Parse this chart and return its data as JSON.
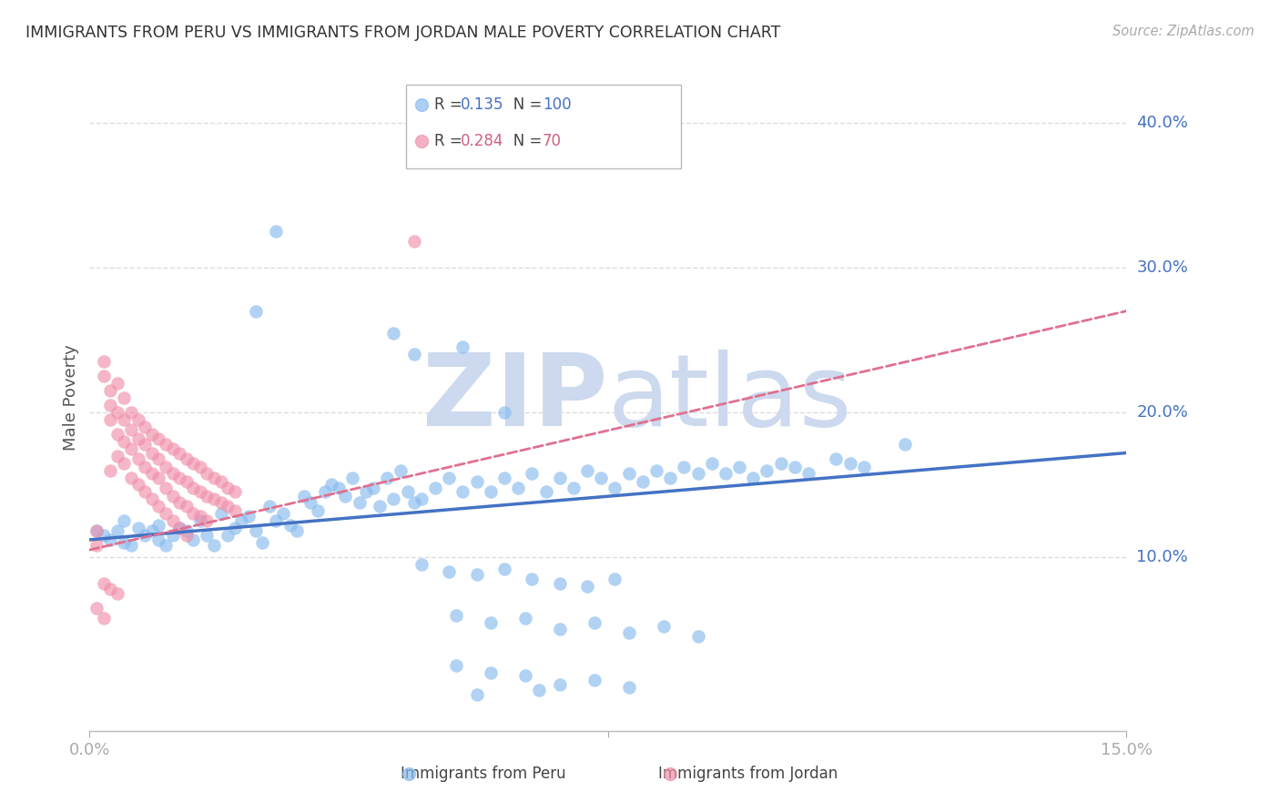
{
  "title": "IMMIGRANTS FROM PERU VS IMMIGRANTS FROM JORDAN MALE POVERTY CORRELATION CHART",
  "source": "Source: ZipAtlas.com",
  "ylabel_label": "Male Poverty",
  "xlim": [
    0.0,
    0.15
  ],
  "ylim": [
    -0.02,
    0.44
  ],
  "ylabel_right_positions": [
    0.1,
    0.2,
    0.3,
    0.4
  ],
  "ylabel_right_labels": [
    "10.0%",
    "20.0%",
    "30.0%",
    "40.0%"
  ],
  "legend_peru_R": "0.135",
  "legend_peru_N": "100",
  "legend_jordan_R": "0.284",
  "legend_jordan_N": "70",
  "color_peru": "#88bbee",
  "color_jordan": "#f090aa",
  "color_line_peru": "#4472c4",
  "color_line_jordan": "#e07090",
  "color_text_blue": "#4472c4",
  "color_text_pink": "#d06080",
  "watermark_color": "#ccd9ee",
  "background_color": "#ffffff",
  "grid_color": "#dddddd",
  "peru_line_x": [
    0.0,
    0.15
  ],
  "peru_line_y": [
    0.112,
    0.172
  ],
  "jordan_line_x": [
    0.0,
    0.15
  ],
  "jordan_line_y": [
    0.105,
    0.27
  ],
  "peru_scatter": [
    [
      0.001,
      0.118
    ],
    [
      0.002,
      0.115
    ],
    [
      0.003,
      0.112
    ],
    [
      0.004,
      0.118
    ],
    [
      0.005,
      0.11
    ],
    [
      0.005,
      0.125
    ],
    [
      0.006,
      0.108
    ],
    [
      0.007,
      0.12
    ],
    [
      0.008,
      0.115
    ],
    [
      0.009,
      0.118
    ],
    [
      0.01,
      0.112
    ],
    [
      0.01,
      0.122
    ],
    [
      0.011,
      0.108
    ],
    [
      0.012,
      0.115
    ],
    [
      0.013,
      0.12
    ],
    [
      0.014,
      0.118
    ],
    [
      0.015,
      0.112
    ],
    [
      0.016,
      0.125
    ],
    [
      0.017,
      0.115
    ],
    [
      0.018,
      0.108
    ],
    [
      0.019,
      0.13
    ],
    [
      0.02,
      0.115
    ],
    [
      0.021,
      0.12
    ],
    [
      0.022,
      0.125
    ],
    [
      0.023,
      0.128
    ],
    [
      0.024,
      0.118
    ],
    [
      0.025,
      0.11
    ],
    [
      0.026,
      0.135
    ],
    [
      0.027,
      0.125
    ],
    [
      0.028,
      0.13
    ],
    [
      0.029,
      0.122
    ],
    [
      0.03,
      0.118
    ],
    [
      0.031,
      0.142
    ],
    [
      0.032,
      0.138
    ],
    [
      0.033,
      0.132
    ],
    [
      0.034,
      0.145
    ],
    [
      0.035,
      0.15
    ],
    [
      0.036,
      0.148
    ],
    [
      0.037,
      0.142
    ],
    [
      0.038,
      0.155
    ],
    [
      0.039,
      0.138
    ],
    [
      0.04,
      0.145
    ],
    [
      0.041,
      0.148
    ],
    [
      0.042,
      0.135
    ],
    [
      0.043,
      0.155
    ],
    [
      0.044,
      0.14
    ],
    [
      0.045,
      0.16
    ],
    [
      0.046,
      0.145
    ],
    [
      0.047,
      0.138
    ],
    [
      0.048,
      0.14
    ],
    [
      0.05,
      0.148
    ],
    [
      0.052,
      0.155
    ],
    [
      0.054,
      0.145
    ],
    [
      0.056,
      0.152
    ],
    [
      0.058,
      0.145
    ],
    [
      0.06,
      0.155
    ],
    [
      0.062,
      0.148
    ],
    [
      0.064,
      0.158
    ],
    [
      0.066,
      0.145
    ],
    [
      0.068,
      0.155
    ],
    [
      0.07,
      0.148
    ],
    [
      0.072,
      0.16
    ],
    [
      0.074,
      0.155
    ],
    [
      0.076,
      0.148
    ],
    [
      0.078,
      0.158
    ],
    [
      0.08,
      0.152
    ],
    [
      0.082,
      0.16
    ],
    [
      0.084,
      0.155
    ],
    [
      0.086,
      0.162
    ],
    [
      0.088,
      0.158
    ],
    [
      0.09,
      0.165
    ],
    [
      0.092,
      0.158
    ],
    [
      0.094,
      0.162
    ],
    [
      0.096,
      0.155
    ],
    [
      0.098,
      0.16
    ],
    [
      0.1,
      0.165
    ],
    [
      0.102,
      0.162
    ],
    [
      0.104,
      0.158
    ],
    [
      0.108,
      0.168
    ],
    [
      0.11,
      0.165
    ],
    [
      0.112,
      0.162
    ],
    [
      0.118,
      0.178
    ],
    [
      0.024,
      0.27
    ],
    [
      0.027,
      0.325
    ],
    [
      0.044,
      0.255
    ],
    [
      0.047,
      0.24
    ],
    [
      0.054,
      0.245
    ],
    [
      0.06,
      0.2
    ],
    [
      0.048,
      0.095
    ],
    [
      0.052,
      0.09
    ],
    [
      0.056,
      0.088
    ],
    [
      0.06,
      0.092
    ],
    [
      0.064,
      0.085
    ],
    [
      0.068,
      0.082
    ],
    [
      0.072,
      0.08
    ],
    [
      0.076,
      0.085
    ],
    [
      0.053,
      0.06
    ],
    [
      0.058,
      0.055
    ],
    [
      0.063,
      0.058
    ],
    [
      0.068,
      0.05
    ],
    [
      0.073,
      0.055
    ],
    [
      0.078,
      0.048
    ],
    [
      0.083,
      0.052
    ],
    [
      0.088,
      0.045
    ],
    [
      0.053,
      0.025
    ],
    [
      0.058,
      0.02
    ],
    [
      0.063,
      0.018
    ],
    [
      0.068,
      0.012
    ],
    [
      0.073,
      0.015
    ],
    [
      0.078,
      0.01
    ],
    [
      0.056,
      0.005
    ],
    [
      0.065,
      0.008
    ]
  ],
  "jordan_scatter": [
    [
      0.001,
      0.118
    ],
    [
      0.001,
      0.108
    ],
    [
      0.002,
      0.235
    ],
    [
      0.002,
      0.225
    ],
    [
      0.003,
      0.215
    ],
    [
      0.003,
      0.205
    ],
    [
      0.003,
      0.195
    ],
    [
      0.003,
      0.16
    ],
    [
      0.004,
      0.22
    ],
    [
      0.004,
      0.2
    ],
    [
      0.004,
      0.185
    ],
    [
      0.004,
      0.17
    ],
    [
      0.005,
      0.21
    ],
    [
      0.005,
      0.195
    ],
    [
      0.005,
      0.18
    ],
    [
      0.005,
      0.165
    ],
    [
      0.006,
      0.2
    ],
    [
      0.006,
      0.188
    ],
    [
      0.006,
      0.175
    ],
    [
      0.006,
      0.155
    ],
    [
      0.007,
      0.195
    ],
    [
      0.007,
      0.182
    ],
    [
      0.007,
      0.168
    ],
    [
      0.007,
      0.15
    ],
    [
      0.008,
      0.19
    ],
    [
      0.008,
      0.178
    ],
    [
      0.008,
      0.162
    ],
    [
      0.008,
      0.145
    ],
    [
      0.009,
      0.185
    ],
    [
      0.009,
      0.172
    ],
    [
      0.009,
      0.158
    ],
    [
      0.009,
      0.14
    ],
    [
      0.01,
      0.182
    ],
    [
      0.01,
      0.168
    ],
    [
      0.01,
      0.155
    ],
    [
      0.01,
      0.135
    ],
    [
      0.011,
      0.178
    ],
    [
      0.011,
      0.162
    ],
    [
      0.011,
      0.148
    ],
    [
      0.011,
      0.13
    ],
    [
      0.012,
      0.175
    ],
    [
      0.012,
      0.158
    ],
    [
      0.012,
      0.142
    ],
    [
      0.012,
      0.125
    ],
    [
      0.013,
      0.172
    ],
    [
      0.013,
      0.155
    ],
    [
      0.013,
      0.138
    ],
    [
      0.013,
      0.12
    ],
    [
      0.014,
      0.168
    ],
    [
      0.014,
      0.152
    ],
    [
      0.014,
      0.135
    ],
    [
      0.014,
      0.115
    ],
    [
      0.015,
      0.165
    ],
    [
      0.015,
      0.148
    ],
    [
      0.015,
      0.13
    ],
    [
      0.016,
      0.162
    ],
    [
      0.016,
      0.145
    ],
    [
      0.016,
      0.128
    ],
    [
      0.017,
      0.158
    ],
    [
      0.017,
      0.142
    ],
    [
      0.017,
      0.125
    ],
    [
      0.018,
      0.155
    ],
    [
      0.018,
      0.14
    ],
    [
      0.019,
      0.152
    ],
    [
      0.019,
      0.138
    ],
    [
      0.02,
      0.148
    ],
    [
      0.02,
      0.135
    ],
    [
      0.021,
      0.145
    ],
    [
      0.021,
      0.132
    ],
    [
      0.002,
      0.082
    ],
    [
      0.003,
      0.078
    ],
    [
      0.004,
      0.075
    ],
    [
      0.047,
      0.318
    ],
    [
      0.001,
      0.065
    ],
    [
      0.002,
      0.058
    ]
  ]
}
